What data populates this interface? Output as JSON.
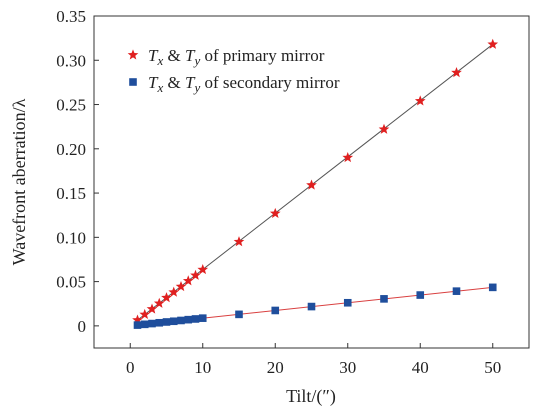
{
  "chart_data": {
    "type": "scatter",
    "title": "",
    "xlabel": "Tilt/(″)",
    "ylabel": "Wavefront aberration/λ",
    "xlim": [
      -5,
      55
    ],
    "ylim": [
      -0.025,
      0.35
    ],
    "xticks": [
      0,
      10,
      20,
      30,
      40,
      50
    ],
    "xtick_labels": [
      "0",
      "10",
      "20",
      "30",
      "40",
      "50"
    ],
    "yticks": [
      0,
      0.05,
      0.1,
      0.15,
      0.2,
      0.25,
      0.3,
      0.35
    ],
    "ytick_labels": [
      "0",
      "0.05",
      "0.10",
      "0.15",
      "0.20",
      "0.25",
      "0.30",
      "0.35"
    ],
    "grid": false,
    "legend_position": "top-left",
    "series": [
      {
        "name": "T_x & T_y of primary mirror",
        "legend": {
          "t1": "T",
          "s1": "x",
          "amp": " & ",
          "t2": "T",
          "s2": "y",
          "rest": " of primary mirror"
        },
        "marker": "star",
        "color": "#e02020",
        "line_color": "#555555",
        "x": [
          1,
          2,
          3,
          4,
          5,
          6,
          7,
          8,
          9,
          10,
          15,
          20,
          25,
          30,
          35,
          40,
          45,
          50
        ],
        "y": [
          0.0065,
          0.0128,
          0.019,
          0.0254,
          0.0318,
          0.038,
          0.0444,
          0.0508,
          0.057,
          0.0635,
          0.095,
          0.127,
          0.159,
          0.19,
          0.222,
          0.254,
          0.286,
          0.318
        ]
      },
      {
        "name": "T_x & T_y of secondary mirror",
        "legend": {
          "t1": "T",
          "s1": "x",
          "amp": " & ",
          "t2": "T",
          "s2": "y",
          "rest": " of secondary mirror"
        },
        "marker": "square",
        "color": "#1f4e9c",
        "line_color": "#d94040",
        "x": [
          1,
          2,
          3,
          4,
          5,
          6,
          7,
          8,
          9,
          10,
          15,
          20,
          25,
          30,
          35,
          40,
          45,
          50
        ],
        "y": [
          0.00087,
          0.00174,
          0.0026,
          0.0035,
          0.0044,
          0.0052,
          0.0061,
          0.007,
          0.0078,
          0.0087,
          0.013,
          0.0174,
          0.0218,
          0.0261,
          0.0305,
          0.0348,
          0.0392,
          0.0435
        ]
      }
    ]
  }
}
